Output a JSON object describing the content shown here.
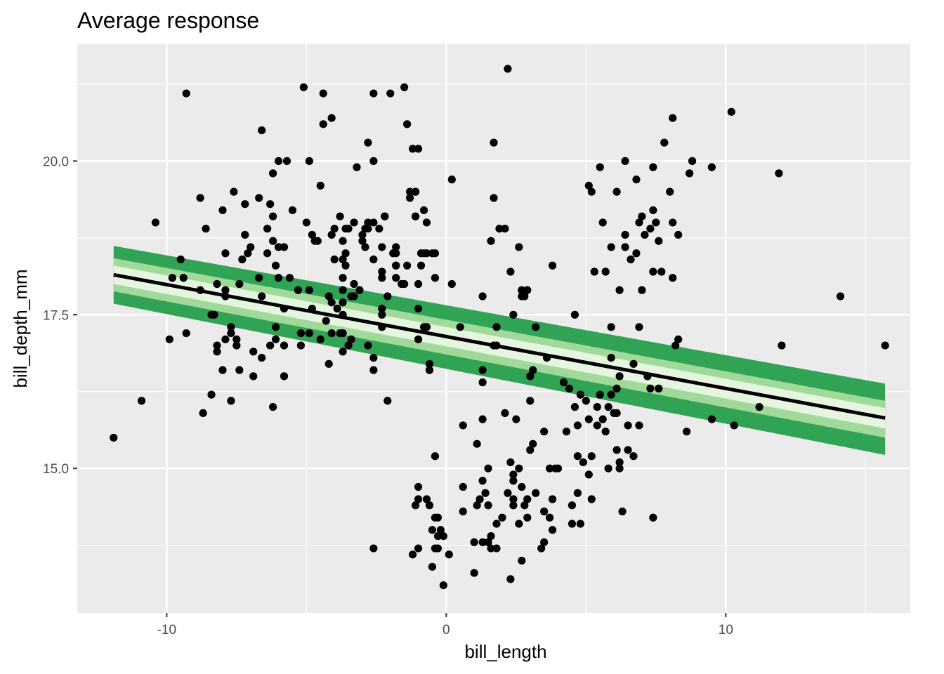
{
  "chart_data": {
    "type": "scatter",
    "title": "Average response",
    "xlabel": "bill_length",
    "ylabel": "bill_depth_mm",
    "xlim": [
      -13.2,
      16.6
    ],
    "ylim": [
      12.65,
      21.9
    ],
    "x_ticks": [
      -10,
      0,
      10
    ],
    "x_tick_labels": [
      "-10",
      "0",
      "10"
    ],
    "y_ticks": [
      15.0,
      17.5,
      20.0
    ],
    "y_tick_labels": [
      "15.0",
      "17.5",
      "20.0"
    ],
    "grid": true,
    "legend": "none",
    "trend_line": {
      "x": [
        -11.9,
        15.7
      ],
      "y": [
        18.15,
        15.82
      ],
      "color": "#000000"
    },
    "ribbons": [
      {
        "level": "outer",
        "color": "#31a354",
        "upper": [
          18.62,
          16.38
        ],
        "lower": [
          17.68,
          15.22
        ]
      },
      {
        "level": "middle",
        "color": "#a1d99b",
        "upper": [
          18.42,
          16.1
        ],
        "lower": [
          17.88,
          15.5
        ]
      },
      {
        "level": "inner",
        "color": "#e5f5e0",
        "upper": [
          18.3,
          15.98
        ],
        "lower": [
          18.0,
          15.65
        ]
      }
    ],
    "point_color": "#000000",
    "points": [
      [
        -11.9,
        15.5
      ],
      [
        -10.9,
        16.1
      ],
      [
        -10.4,
        19.0
      ],
      [
        -9.9,
        17.1
      ],
      [
        -9.8,
        18.1
      ],
      [
        -9.5,
        18.4
      ],
      [
        -9.4,
        18.1
      ],
      [
        -9.3,
        21.1
      ],
      [
        -9.3,
        17.2
      ],
      [
        -8.8,
        17.9
      ],
      [
        -8.8,
        19.4
      ],
      [
        -8.7,
        15.9
      ],
      [
        -8.6,
        18.9
      ],
      [
        -8.4,
        17.5
      ],
      [
        -8.4,
        16.2
      ],
      [
        -8.3,
        17.5
      ],
      [
        -8.2,
        18.0
      ],
      [
        -8.2,
        17.0
      ],
      [
        -8.2,
        16.9
      ],
      [
        -8.0,
        19.2
      ],
      [
        -8.0,
        16.6
      ],
      [
        -7.9,
        18.5
      ],
      [
        -7.9,
        17.9
      ],
      [
        -7.9,
        17.8
      ],
      [
        -7.9,
        17.1
      ],
      [
        -7.7,
        17.3
      ],
      [
        -7.7,
        17.2
      ],
      [
        -7.7,
        16.1
      ],
      [
        -7.6,
        19.5
      ],
      [
        -7.5,
        17.1
      ],
      [
        -7.5,
        17.0
      ],
      [
        -7.4,
        18.0
      ],
      [
        -7.4,
        16.6
      ],
      [
        -7.3,
        18.4
      ],
      [
        -7.2,
        18.8
      ],
      [
        -7.2,
        19.3
      ],
      [
        -7.1,
        18.5
      ],
      [
        -7.0,
        18.6
      ],
      [
        -6.9,
        16.9
      ],
      [
        -6.9,
        16.5
      ],
      [
        -6.7,
        18.1
      ],
      [
        -6.7,
        19.4
      ],
      [
        -6.6,
        17.8
      ],
      [
        -6.6,
        16.8
      ],
      [
        -6.6,
        20.5
      ],
      [
        -6.4,
        18.9
      ],
      [
        -6.4,
        18.5
      ],
      [
        -6.3,
        17.0
      ],
      [
        -6.3,
        19.3
      ],
      [
        -6.2,
        19.8
      ],
      [
        -6.2,
        19.1
      ],
      [
        -6.2,
        18.7
      ],
      [
        -6.2,
        16.0
      ],
      [
        -6.1,
        18.3
      ],
      [
        -6.1,
        17.3
      ],
      [
        -6.1,
        17.1
      ],
      [
        -6.0,
        20.0
      ],
      [
        -6.0,
        18.1
      ],
      [
        -6.0,
        18.6
      ],
      [
        -5.8,
        18.6
      ],
      [
        -5.8,
        17.6
      ],
      [
        -5.8,
        16.5
      ],
      [
        -5.8,
        17.0
      ],
      [
        -5.7,
        20.0
      ],
      [
        -5.6,
        18.1
      ],
      [
        -5.5,
        19.2
      ],
      [
        -5.3,
        17.9
      ],
      [
        -5.2,
        17.0
      ],
      [
        -5.2,
        17.2
      ],
      [
        -5.1,
        21.2
      ],
      [
        -5.0,
        19.0
      ],
      [
        -4.9,
        20.0
      ],
      [
        -4.9,
        17.9
      ],
      [
        -4.9,
        17.2
      ],
      [
        -4.8,
        17.6
      ],
      [
        -4.8,
        18.8
      ],
      [
        -4.7,
        18.7
      ],
      [
        -4.6,
        18.7
      ],
      [
        -4.5,
        17.1
      ],
      [
        -4.5,
        19.6
      ],
      [
        -4.4,
        21.1
      ],
      [
        -4.4,
        20.6
      ],
      [
        -4.3,
        17.4
      ],
      [
        -4.2,
        17.8
      ],
      [
        -4.2,
        16.7
      ],
      [
        -4.1,
        17.2
      ],
      [
        -4.1,
        17.7
      ],
      [
        -4.1,
        18.8
      ],
      [
        -4.1,
        20.7
      ],
      [
        -4.0,
        18.9
      ],
      [
        -4.0,
        18.4
      ],
      [
        -3.9,
        17.6
      ],
      [
        -3.8,
        17.2
      ],
      [
        -3.8,
        19.1
      ],
      [
        -3.7,
        16.9
      ],
      [
        -3.5,
        18.9
      ],
      [
        -3.5,
        17.0
      ],
      [
        -3.7,
        18.7
      ],
      [
        -3.7,
        17.7
      ],
      [
        -3.7,
        18.1
      ],
      [
        -3.7,
        18.4
      ],
      [
        -3.6,
        18.5
      ],
      [
        -3.7,
        17.9
      ],
      [
        -3.7,
        17.5
      ],
      [
        -3.7,
        17.2
      ],
      [
        -3.6,
        18.9
      ],
      [
        -3.6,
        18.3
      ],
      [
        -3.4,
        17.1
      ],
      [
        -3.4,
        17.8
      ],
      [
        -3.3,
        18.0
      ],
      [
        -3.3,
        19.0
      ],
      [
        -3.3,
        17.8
      ],
      [
        -3.2,
        19.9
      ],
      [
        -3.1,
        17.9
      ],
      [
        -3.0,
        18.8
      ],
      [
        -3.0,
        18.7
      ],
      [
        -2.9,
        18.9
      ],
      [
        -2.9,
        18.6
      ],
      [
        -2.8,
        19.0
      ],
      [
        -2.8,
        18.9
      ],
      [
        -2.8,
        17.0
      ],
      [
        -2.6,
        19.0
      ],
      [
        -2.6,
        18.4
      ],
      [
        -2.6,
        16.8
      ],
      [
        -2.6,
        16.6
      ],
      [
        -2.6,
        13.7
      ],
      [
        -2.4,
        18.9
      ],
      [
        -2.3,
        18.6
      ],
      [
        -2.3,
        18.2
      ],
      [
        -2.3,
        18.1
      ],
      [
        -2.3,
        17.6
      ],
      [
        -2.3,
        17.5
      ],
      [
        -2.3,
        17.3
      ],
      [
        -2.2,
        19.1
      ],
      [
        -2.1,
        17.8
      ],
      [
        -2.1,
        16.1
      ],
      [
        -2.0,
        21.1
      ],
      [
        -1.9,
        18.5
      ],
      [
        -1.8,
        18.3
      ],
      [
        -1.8,
        18.6
      ],
      [
        -1.8,
        18.1
      ],
      [
        -1.8,
        18.5
      ],
      [
        -1.6,
        18.0
      ],
      [
        -1.5,
        18.0
      ],
      [
        -1.3,
        19.5
      ],
      [
        -1.3,
        19.4
      ],
      [
        -1.2,
        13.6
      ],
      [
        -1.2,
        20.2
      ],
      [
        -1.1,
        19.5
      ],
      [
        -1.1,
        19.1
      ],
      [
        -1.0,
        18.0
      ],
      [
        -1.0,
        14.7
      ],
      [
        -1.0,
        17.1
      ],
      [
        -0.9,
        18.5
      ],
      [
        -1.0,
        20.2
      ],
      [
        -1.1,
        19.5
      ],
      [
        -1.1,
        19.1
      ],
      [
        -1.4,
        18.3
      ],
      [
        -1.8,
        18.3
      ],
      [
        -2.2,
        19.1
      ],
      [
        -2.6,
        20.0
      ],
      [
        -2.8,
        20.3
      ],
      [
        -2.6,
        21.1
      ],
      [
        -1.5,
        21.2
      ],
      [
        -1.4,
        20.6
      ],
      [
        -0.8,
        17.3
      ],
      [
        -0.7,
        17.3
      ],
      [
        -0.6,
        16.7
      ],
      [
        -0.5,
        18.5
      ],
      [
        -0.4,
        13.7
      ],
      [
        -0.4,
        18.5
      ],
      [
        -0.3,
        13.7
      ],
      [
        -0.3,
        14.2
      ],
      [
        -0.2,
        14.0
      ],
      [
        -0.1,
        13.1
      ],
      [
        -1.0,
        17.6
      ],
      [
        -0.9,
        18.3
      ],
      [
        -0.8,
        18.5
      ],
      [
        -1.0,
        13.7
      ],
      [
        -1.1,
        14.4
      ],
      [
        -1.0,
        14.5
      ],
      [
        -0.8,
        19.2
      ],
      [
        -0.7,
        19.0
      ],
      [
        -0.7,
        18.5
      ],
      [
        -0.6,
        16.6
      ],
      [
        -0.7,
        14.5
      ],
      [
        -0.6,
        14.4
      ],
      [
        -0.5,
        13.4
      ],
      [
        -0.5,
        14.0
      ],
      [
        -0.4,
        14.2
      ],
      [
        -0.4,
        18.1
      ],
      [
        -0.4,
        15.2
      ],
      [
        -0.3,
        13.9
      ],
      [
        -0.1,
        13.9
      ],
      [
        0.1,
        13.6
      ],
      [
        0.2,
        18.0
      ],
      [
        0.2,
        19.7
      ],
      [
        0.5,
        17.3
      ],
      [
        0.6,
        15.7
      ],
      [
        0.6,
        14.7
      ],
      [
        0.6,
        14.3
      ],
      [
        1.0,
        13.3
      ],
      [
        1.0,
        13.8
      ],
      [
        1.1,
        15.4
      ],
      [
        1.1,
        14.4
      ],
      [
        1.2,
        14.5
      ],
      [
        1.3,
        17.8
      ],
      [
        1.3,
        13.8
      ],
      [
        1.3,
        16.4
      ],
      [
        1.3,
        16.6
      ],
      [
        1.3,
        14.8
      ],
      [
        1.3,
        15.8
      ],
      [
        1.4,
        14.6
      ],
      [
        1.5,
        14.4
      ],
      [
        1.5,
        13.8
      ],
      [
        1.5,
        15.0
      ],
      [
        1.6,
        18.7
      ],
      [
        1.6,
        13.9
      ],
      [
        1.6,
        13.7
      ],
      [
        1.7,
        17.0
      ],
      [
        1.7,
        19.4
      ],
      [
        1.7,
        20.3
      ],
      [
        1.8,
        17.3
      ],
      [
        1.8,
        13.7
      ],
      [
        1.8,
        14.1
      ],
      [
        1.8,
        17.0
      ],
      [
        1.9,
        18.9
      ],
      [
        2.0,
        14.2
      ],
      [
        2.1,
        18.9
      ],
      [
        2.1,
        15.9
      ],
      [
        2.2,
        14.6
      ],
      [
        2.2,
        21.5
      ],
      [
        2.3,
        15.1
      ],
      [
        2.3,
        18.2
      ],
      [
        2.3,
        13.2
      ],
      [
        2.4,
        17.5
      ],
      [
        2.4,
        14.9
      ],
      [
        2.4,
        14.8
      ],
      [
        2.4,
        14.4
      ],
      [
        2.4,
        14.5
      ],
      [
        2.5,
        15.8
      ],
      [
        2.6,
        18.6
      ],
      [
        2.6,
        14.1
      ],
      [
        2.6,
        15.0
      ],
      [
        2.7,
        17.8
      ],
      [
        2.7,
        17.9
      ],
      [
        2.7,
        13.5
      ],
      [
        2.7,
        14.7
      ],
      [
        2.8,
        17.8
      ],
      [
        2.8,
        14.4
      ],
      [
        2.9,
        17.9
      ],
      [
        2.9,
        14.2
      ],
      [
        2.9,
        14.5
      ],
      [
        3.0,
        15.3
      ],
      [
        3.0,
        16.1
      ],
      [
        3.0,
        16.5
      ],
      [
        3.1,
        15.4
      ],
      [
        3.1,
        16.6
      ],
      [
        3.2,
        14.6
      ],
      [
        3.2,
        17.3
      ],
      [
        3.4,
        13.7
      ],
      [
        3.5,
        13.8
      ],
      [
        3.5,
        15.6
      ],
      [
        3.5,
        14.3
      ],
      [
        3.6,
        16.8
      ],
      [
        3.7,
        14.2
      ],
      [
        3.7,
        15.0
      ],
      [
        3.8,
        18.3
      ],
      [
        3.8,
        14.5
      ],
      [
        3.8,
        14.0
      ],
      [
        3.9,
        15.0
      ],
      [
        4.0,
        15.0
      ],
      [
        4.2,
        16.4
      ],
      [
        4.3,
        15.6
      ],
      [
        4.4,
        16.3
      ],
      [
        4.5,
        14.4
      ],
      [
        4.5,
        14.1
      ],
      [
        4.6,
        17.5
      ],
      [
        4.6,
        16.0
      ],
      [
        4.7,
        15.7
      ],
      [
        4.7,
        14.6
      ],
      [
        4.7,
        15.2
      ],
      [
        4.8,
        16.2
      ],
      [
        4.8,
        14.1
      ],
      [
        4.9,
        15.1
      ],
      [
        5.0,
        16.1
      ],
      [
        5.1,
        15.8
      ],
      [
        5.1,
        14.9
      ],
      [
        5.1,
        19.6
      ],
      [
        5.2,
        19.5
      ],
      [
        5.2,
        14.5
      ],
      [
        5.2,
        15.2
      ],
      [
        5.3,
        18.2
      ],
      [
        5.4,
        15.7
      ],
      [
        5.4,
        16.0
      ],
      [
        5.5,
        19.9
      ],
      [
        5.5,
        16.2
      ],
      [
        5.6,
        15.8
      ],
      [
        5.6,
        19.0
      ],
      [
        5.7,
        15.6
      ],
      [
        5.7,
        18.2
      ],
      [
        5.8,
        16.0
      ],
      [
        5.8,
        15.0
      ],
      [
        5.9,
        18.6
      ],
      [
        5.9,
        16.2
      ],
      [
        5.9,
        17.3
      ],
      [
        5.9,
        16.8
      ],
      [
        6.0,
        15.9
      ],
      [
        6.1,
        19.5
      ],
      [
        6.1,
        15.3
      ],
      [
        6.1,
        16.3
      ],
      [
        6.1,
        15.9
      ],
      [
        6.2,
        17.9
      ],
      [
        6.2,
        16.5
      ],
      [
        6.2,
        15.1
      ],
      [
        6.2,
        15.0
      ],
      [
        6.3,
        14.3
      ],
      [
        6.4,
        18.8
      ],
      [
        6.4,
        18.6
      ],
      [
        6.4,
        20.0
      ],
      [
        6.5,
        15.7
      ],
      [
        6.5,
        15.3
      ],
      [
        6.6,
        18.4
      ],
      [
        6.7,
        15.2
      ],
      [
        6.7,
        16.7
      ],
      [
        6.8,
        19.7
      ],
      [
        6.8,
        18.5
      ],
      [
        6.9,
        15.7
      ],
      [
        6.9,
        19.0
      ],
      [
        6.9,
        17.3
      ],
      [
        7.0,
        17.9
      ],
      [
        7.0,
        19.1
      ],
      [
        7.1,
        18.8
      ],
      [
        7.2,
        16.5
      ],
      [
        7.3,
        18.9
      ],
      [
        7.3,
        16.3
      ],
      [
        7.4,
        19.2
      ],
      [
        7.4,
        18.2
      ],
      [
        7.4,
        14.2
      ],
      [
        7.4,
        19.9
      ],
      [
        7.5,
        19.0
      ],
      [
        7.6,
        16.3
      ],
      [
        7.6,
        18.7
      ],
      [
        7.7,
        18.2
      ],
      [
        7.8,
        20.3
      ],
      [
        8.0,
        19.5
      ],
      [
        8.1,
        19.0
      ],
      [
        8.1,
        18.1
      ],
      [
        8.1,
        20.7
      ],
      [
        8.2,
        17.0
      ],
      [
        8.3,
        17.1
      ],
      [
        8.3,
        18.8
      ],
      [
        8.6,
        15.6
      ],
      [
        8.7,
        19.8
      ],
      [
        8.8,
        20.0
      ],
      [
        9.5,
        15.8
      ],
      [
        9.5,
        19.9
      ],
      [
        10.2,
        20.8
      ],
      [
        10.3,
        15.7
      ],
      [
        11.2,
        16.0
      ],
      [
        11.9,
        19.8
      ],
      [
        12.0,
        17.0
      ],
      [
        14.1,
        17.8
      ],
      [
        15.7,
        17.0
      ]
    ]
  }
}
